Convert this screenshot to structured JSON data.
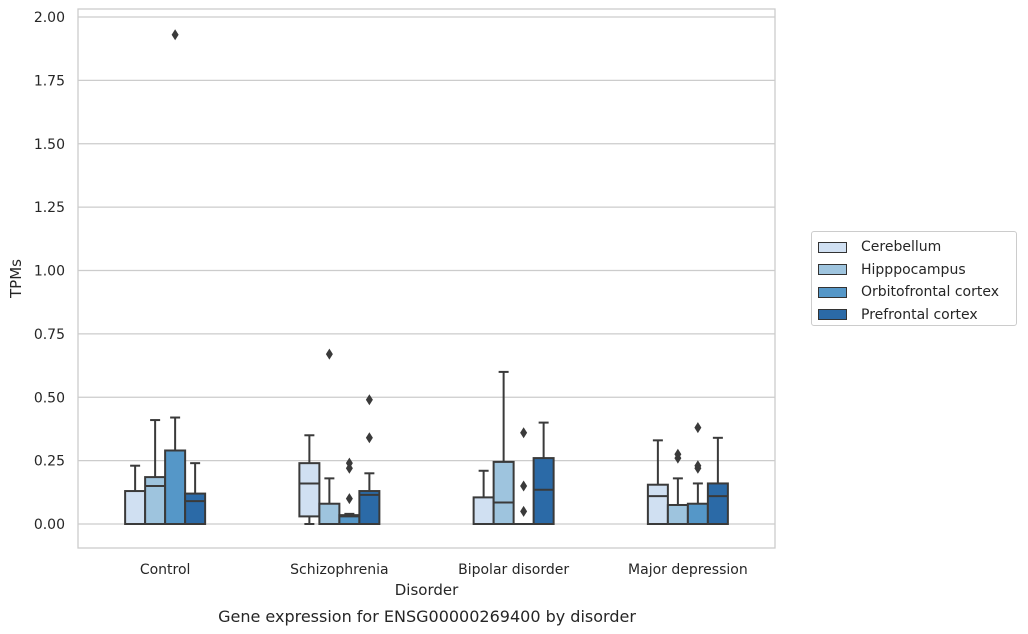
{
  "chart_data": {
    "type": "box",
    "title": "Gene expression for ENSG00000269400 by disorder",
    "xlabel": "Disorder",
    "ylabel": "TPMs",
    "ylim": [
      -0.1,
      2.03
    ],
    "yticks": [
      "0.00",
      "0.25",
      "0.50",
      "0.75",
      "1.00",
      "1.25",
      "1.50",
      "1.75",
      "2.00"
    ],
    "categories": [
      "Control",
      "Schizophrenia",
      "Bipolar disorder",
      "Major depression"
    ],
    "grid": "horizontal",
    "legend_position": "right",
    "series": [
      {
        "name": "Cerebellum",
        "color": "#d0e0f2",
        "boxes": [
          {
            "whislo": 0.0,
            "q1": 0.0,
            "med": 0.0,
            "q3": 0.13,
            "whishi": 0.23,
            "fliers": []
          },
          {
            "whislo": 0.0,
            "q1": 0.03,
            "med": 0.16,
            "q3": 0.24,
            "whishi": 0.35,
            "fliers": []
          },
          {
            "whislo": 0.0,
            "q1": 0.0,
            "med": 0.0,
            "q3": 0.105,
            "whishi": 0.21,
            "fliers": []
          },
          {
            "whislo": 0.0,
            "q1": 0.0,
            "med": 0.11,
            "q3": 0.155,
            "whishi": 0.33,
            "fliers": []
          }
        ]
      },
      {
        "name": "Hipppocampus",
        "color": "#9ec4de",
        "boxes": [
          {
            "whislo": 0.0,
            "q1": 0.0,
            "med": 0.15,
            "q3": 0.185,
            "whishi": 0.41,
            "fliers": []
          },
          {
            "whislo": 0.0,
            "q1": 0.0,
            "med": 0.0,
            "q3": 0.08,
            "whishi": 0.18,
            "fliers": [
              0.67
            ]
          },
          {
            "whislo": 0.0,
            "q1": 0.0,
            "med": 0.085,
            "q3": 0.245,
            "whishi": 0.6,
            "fliers": []
          },
          {
            "whislo": 0.0,
            "q1": 0.0,
            "med": 0.0,
            "q3": 0.075,
            "whishi": 0.18,
            "fliers": [
              0.26,
              0.275
            ]
          }
        ]
      },
      {
        "name": "Orbitofrontal cortex",
        "color": "#5597c8",
        "boxes": [
          {
            "whislo": 0.0,
            "q1": 0.0,
            "med": 0.0,
            "q3": 0.29,
            "whishi": 0.42,
            "fliers": [
              1.93
            ]
          },
          {
            "whislo": 0.0,
            "q1": 0.0,
            "med": 0.03,
            "q3": 0.035,
            "whishi": 0.04,
            "fliers": [
              0.1,
              0.22,
              0.24
            ]
          },
          {
            "whislo": 0.0,
            "q1": 0.0,
            "med": 0.0,
            "q3": 0.0,
            "whishi": 0.0,
            "fliers": [
              0.05,
              0.15,
              0.36
            ]
          },
          {
            "whislo": 0.0,
            "q1": 0.0,
            "med": 0.0,
            "q3": 0.08,
            "whishi": 0.16,
            "fliers": [
              0.22,
              0.23,
              0.38
            ]
          }
        ]
      },
      {
        "name": "Prefrontal cortex",
        "color": "#2b6aa7",
        "boxes": [
          {
            "whislo": 0.0,
            "q1": 0.0,
            "med": 0.09,
            "q3": 0.12,
            "whishi": 0.24,
            "fliers": []
          },
          {
            "whislo": 0.0,
            "q1": 0.0,
            "med": 0.115,
            "q3": 0.13,
            "whishi": 0.2,
            "fliers": [
              0.34,
              0.49
            ]
          },
          {
            "whislo": 0.0,
            "q1": 0.0,
            "med": 0.135,
            "q3": 0.26,
            "whishi": 0.4,
            "fliers": []
          },
          {
            "whislo": 0.0,
            "q1": 0.0,
            "med": 0.11,
            "q3": 0.16,
            "whishi": 0.34,
            "fliers": []
          }
        ]
      }
    ]
  }
}
